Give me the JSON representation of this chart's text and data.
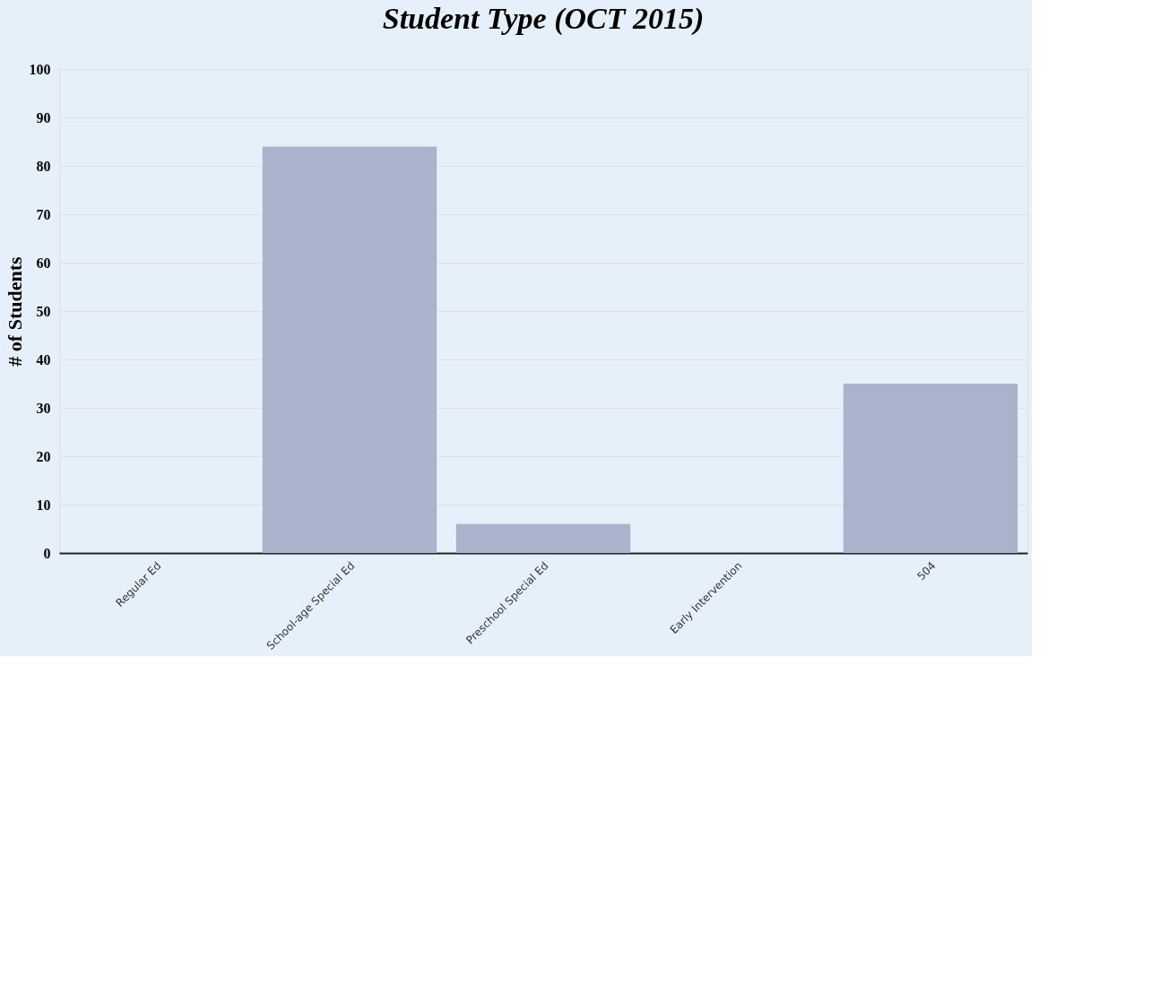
{
  "chart_data": {
    "type": "bar",
    "title": "Student Type (OCT 2015)",
    "ylabel": "# of Students",
    "categories": [
      "Regular Ed",
      "School-age Special Ed",
      "Preschool Special Ed",
      "Early Intervention",
      "504"
    ],
    "values": [
      0,
      84,
      6,
      0,
      35
    ],
    "color": "#a9b4cc",
    "ylim": [
      0,
      100
    ],
    "yticks": [
      0,
      10,
      20,
      30,
      40,
      50,
      60,
      70,
      80,
      90,
      100
    ],
    "grid": "y"
  }
}
